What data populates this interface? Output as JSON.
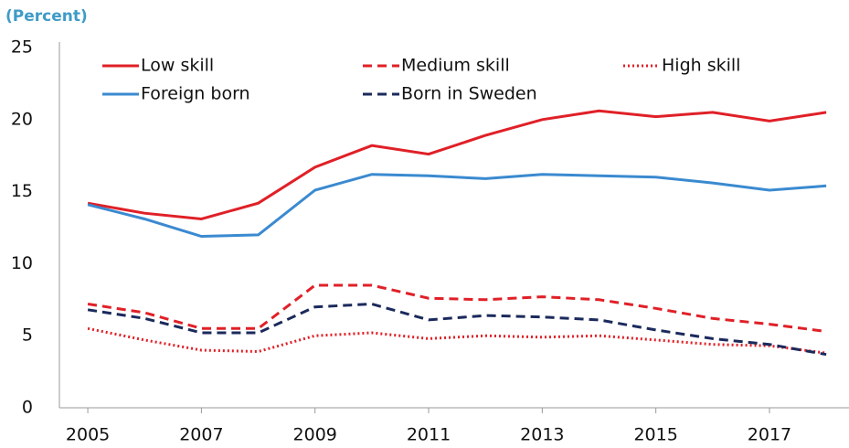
{
  "chart_data": {
    "type": "line",
    "subtitle": "(Percent)",
    "x": [
      2005,
      2006,
      2007,
      2008,
      2009,
      2010,
      2011,
      2012,
      2013,
      2014,
      2015,
      2016,
      2017,
      2018
    ],
    "series": [
      {
        "name": "Low skill",
        "color": "#e02027",
        "dash": "solid",
        "values": [
          14.2,
          13.5,
          13.1,
          14.2,
          16.7,
          18.2,
          17.6,
          18.9,
          20.0,
          20.6,
          20.2,
          20.5,
          19.9,
          20.5
        ]
      },
      {
        "name": "Medium skill",
        "color": "#e02027",
        "dash": "dashed",
        "values": [
          7.2,
          6.6,
          5.5,
          5.5,
          8.5,
          8.5,
          7.6,
          7.5,
          7.7,
          7.5,
          6.9,
          6.2,
          5.8,
          5.3
        ]
      },
      {
        "name": "High skill",
        "color": "#e02027",
        "dash": "dotted",
        "values": [
          5.5,
          4.7,
          4.0,
          3.9,
          5.0,
          5.2,
          4.8,
          5.0,
          4.9,
          5.0,
          4.7,
          4.4,
          4.3,
          3.8
        ]
      },
      {
        "name": "Foreign born",
        "color": "#3a8ad0",
        "dash": "solid",
        "values": [
          14.1,
          13.1,
          11.9,
          12.0,
          15.1,
          16.2,
          16.1,
          15.9,
          16.2,
          16.1,
          16.0,
          15.6,
          15.1,
          15.4
        ]
      },
      {
        "name": "Born in Sweden",
        "color": "#1b2a5c",
        "dash": "dashed",
        "values": [
          6.8,
          6.2,
          5.2,
          5.2,
          7.0,
          7.2,
          6.1,
          6.4,
          6.3,
          6.1,
          5.4,
          4.8,
          4.4,
          3.7
        ]
      }
    ],
    "xlim": [
      2004.5,
      2018.4
    ],
    "xticks": [
      2005,
      2007,
      2009,
      2011,
      2013,
      2015,
      2017
    ],
    "ylim": [
      0,
      25
    ],
    "yticks": [
      0,
      5,
      10,
      15,
      20,
      25
    ],
    "grid": false
  }
}
